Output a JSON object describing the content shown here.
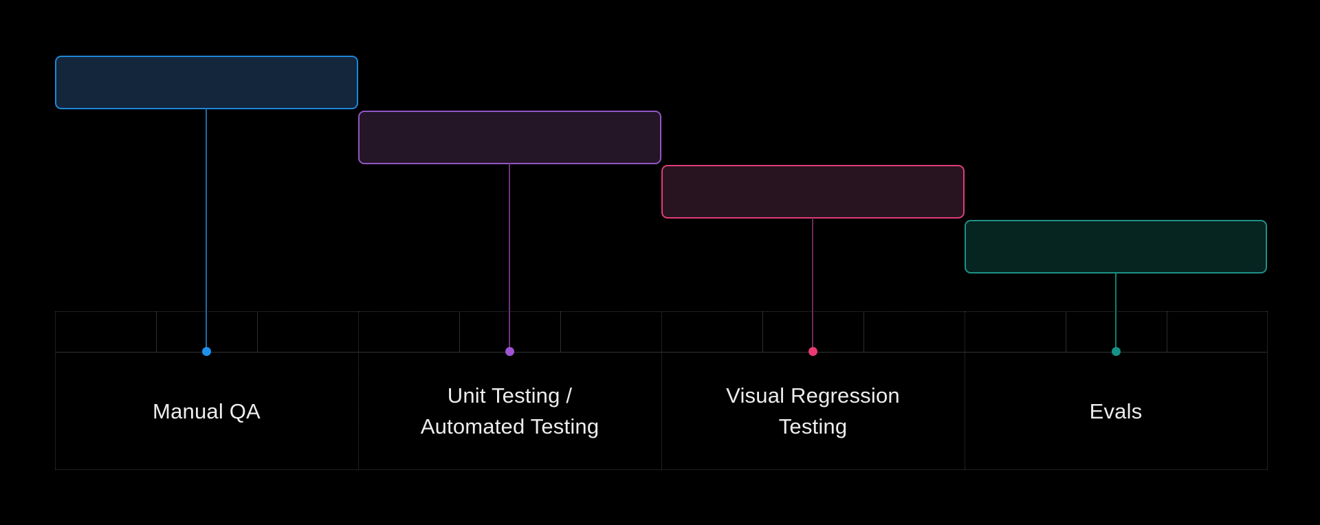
{
  "diagram": {
    "background": "#000000",
    "grid": {
      "horizontal_line_dotted_color": "#3f3f3f",
      "horizontal_line_solid_color": "#333333",
      "column_boundary_color": "#463a50",
      "tick_color": "#2e2e2e"
    },
    "label_text_color": "#ededed",
    "stages": [
      {
        "id": "manual-qa",
        "label": "Manual QA",
        "box_fill": "#13263c",
        "box_border": "#1f87d8",
        "line_color": "#1c6cab",
        "dot_color": "#1e90ee"
      },
      {
        "id": "unit-automated-testing",
        "label": "Unit Testing /\nAutomated Testing",
        "box_fill": "#241527",
        "box_border": "#9257c4",
        "line_color": "#71307f",
        "dot_color": "#9f54d6"
      },
      {
        "id": "visual-regression-testing",
        "label": "Visual Regression\nTesting",
        "box_fill": "#281420",
        "box_border": "#e23d78",
        "line_color": "#6e2a5e",
        "dot_color": "#ea3a74"
      },
      {
        "id": "evals",
        "label": "Evals",
        "box_fill": "#062420",
        "box_border": "#1f9186",
        "line_color": "#0e8075",
        "dot_color": "#169287"
      }
    ]
  }
}
